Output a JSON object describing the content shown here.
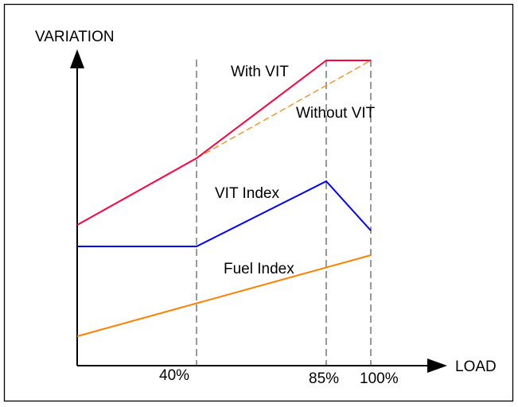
{
  "axes": {
    "y_label": "VARIATION",
    "x_label": "LOAD",
    "x_ticks": [
      "40%",
      "85%",
      "100%"
    ]
  },
  "series": [
    {
      "name": "With VIT",
      "color": "#ff0040",
      "style": "solid"
    },
    {
      "name": "Without VIT",
      "color": "#ff8000",
      "style": "dashed"
    },
    {
      "name": "VIT Index",
      "color": "#0000ff",
      "style": "solid"
    },
    {
      "name": "Fuel Index",
      "color": "#ff8000",
      "style": "solid"
    }
  ]
}
